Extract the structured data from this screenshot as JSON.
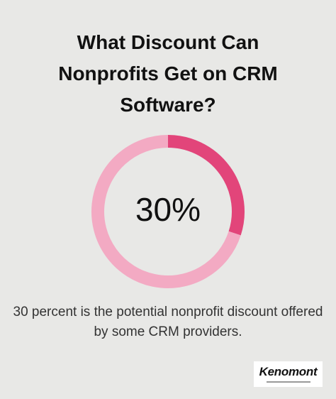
{
  "chart_data": {
    "type": "donut",
    "title": "What Discount Can Nonprofits Get on CRM Software?",
    "values": [
      30,
      70
    ],
    "value_labels": [
      "30%",
      null
    ],
    "colors": [
      "#e2457a",
      "#f3aac3"
    ],
    "caption": "30 percent is the potential nonprofit discount offered by some CRM providers.",
    "logo": "Kenomont"
  }
}
